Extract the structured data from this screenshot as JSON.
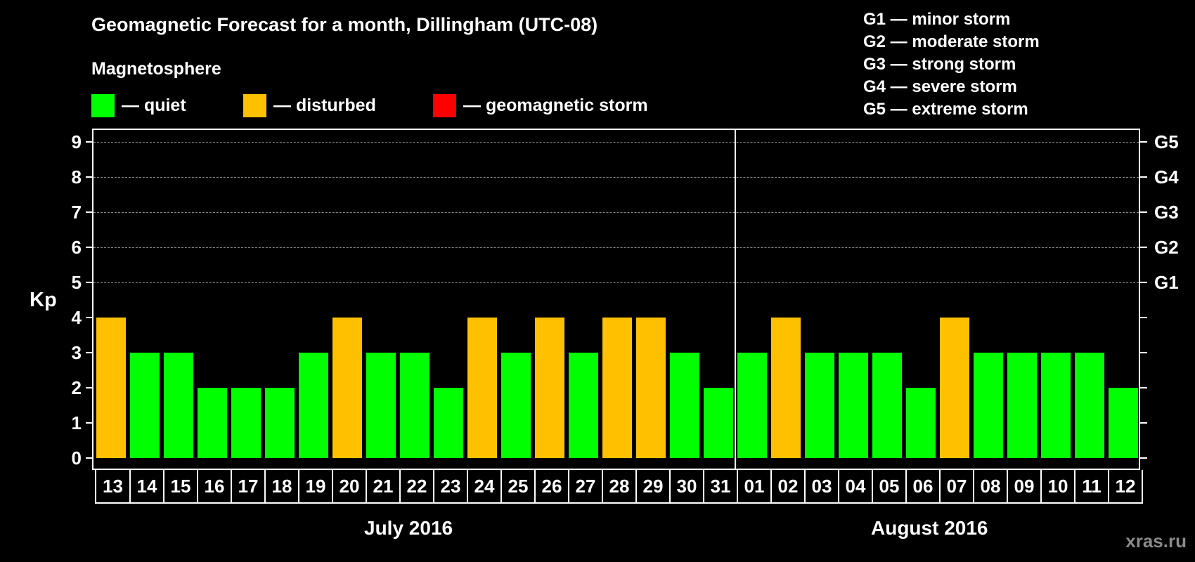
{
  "title": "Geomagnetic Forecast for a month, Dillingham (UTC-08)",
  "subtitle": "Magnetosphere",
  "legend": [
    {
      "label": "— quiet",
      "color": "#00ff00"
    },
    {
      "label": "— disturbed",
      "color": "#ffc000"
    },
    {
      "label": "— geomagnetic storm",
      "color": "#ff0000"
    }
  ],
  "storm_legend": [
    "G1 — minor storm",
    "G2 — moderate storm",
    "G3 — strong storm",
    "G4 — severe storm",
    "G5 — extreme storm"
  ],
  "y_axis_label": "Kp",
  "right_axis_labels": {
    "5": "G1",
    "6": "G2",
    "7": "G3",
    "8": "G4",
    "9": "G5"
  },
  "months": [
    "July 2016",
    "August 2016"
  ],
  "watermark": "xras.ru",
  "colors": {
    "quiet": "#00ff00",
    "disturbed": "#ffc000",
    "storm": "#ff0000",
    "background": "#000000",
    "grid": "#888888"
  },
  "chart_data": {
    "type": "bar",
    "title": "Geomagnetic Forecast for a month, Dillingham (UTC-08)",
    "subtitle": "Magnetosphere",
    "xlabel": "July 2016 / August 2016",
    "ylabel": "Kp",
    "ylim": [
      0,
      9
    ],
    "yticks": [
      0,
      1,
      2,
      3,
      4,
      5,
      6,
      7,
      8,
      9
    ],
    "grid": "dashed horizontal at 5-9",
    "categories": [
      "13",
      "14",
      "15",
      "16",
      "17",
      "18",
      "19",
      "20",
      "21",
      "22",
      "23",
      "24",
      "25",
      "26",
      "27",
      "28",
      "29",
      "30",
      "31",
      "01",
      "02",
      "03",
      "04",
      "05",
      "06",
      "07",
      "08",
      "09",
      "10",
      "11",
      "12"
    ],
    "values": [
      4,
      3,
      3,
      2,
      2,
      2,
      3,
      4,
      3,
      3,
      2,
      4,
      3,
      4,
      3,
      4,
      4,
      3,
      2,
      3,
      4,
      3,
      3,
      3,
      2,
      4,
      3,
      3,
      3,
      3,
      2
    ],
    "status": [
      "disturbed",
      "quiet",
      "quiet",
      "quiet",
      "quiet",
      "quiet",
      "quiet",
      "disturbed",
      "quiet",
      "quiet",
      "quiet",
      "disturbed",
      "quiet",
      "disturbed",
      "quiet",
      "disturbed",
      "disturbed",
      "quiet",
      "quiet",
      "quiet",
      "disturbed",
      "quiet",
      "quiet",
      "quiet",
      "quiet",
      "disturbed",
      "quiet",
      "quiet",
      "quiet",
      "quiet",
      "quiet"
    ],
    "month_split_index": 19,
    "right_axis": {
      "5": "G1",
      "6": "G2",
      "7": "G3",
      "8": "G4",
      "9": "G5"
    },
    "legend": [
      "quiet",
      "disturbed",
      "geomagnetic storm"
    ]
  }
}
